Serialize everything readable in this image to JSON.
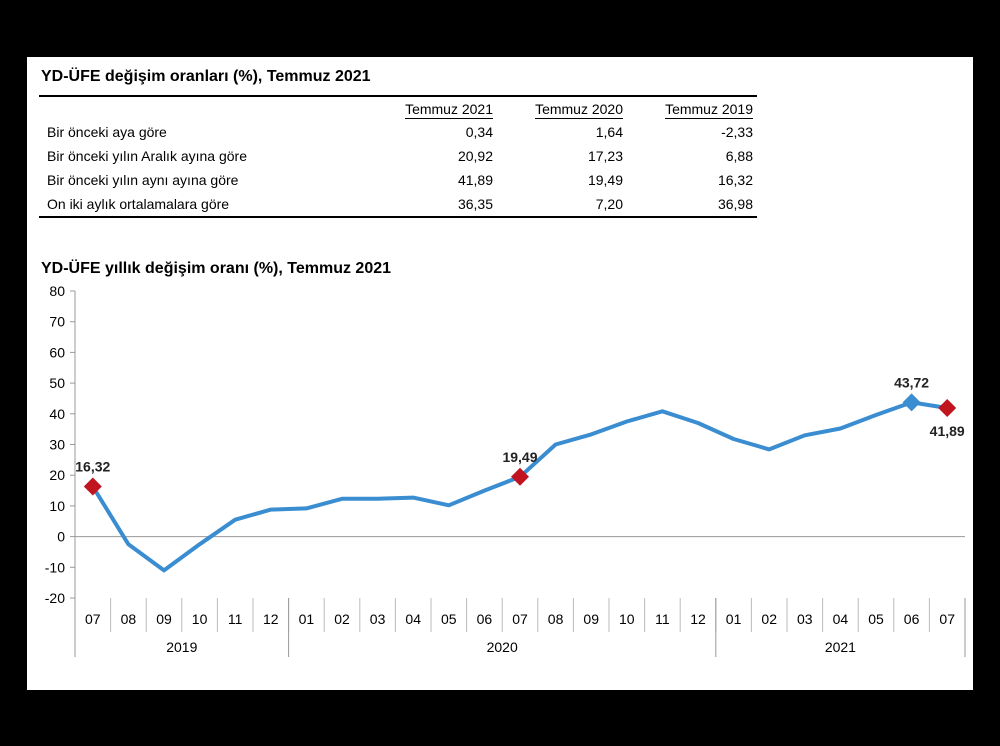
{
  "table": {
    "title": "YD-ÜFE değişim oranları (%), Temmuz 2021",
    "headers": [
      "",
      "Temmuz 2021",
      "Temmuz 2020",
      "Temmuz 2019"
    ],
    "rows": [
      {
        "label": "Bir önceki aya göre",
        "values": [
          "0,34",
          "1,64",
          "-2,33"
        ]
      },
      {
        "label": "Bir önceki yılın Aralık ayına göre",
        "values": [
          "20,92",
          "17,23",
          "6,88"
        ]
      },
      {
        "label": "Bir önceki yılın aynı ayına göre",
        "values": [
          "41,89",
          "19,49",
          "16,32"
        ]
      },
      {
        "label": "On iki aylık ortalamalara göre",
        "values": [
          "36,35",
          "7,20",
          "36,98"
        ]
      }
    ]
  },
  "chart_data": {
    "type": "line",
    "title": "YD-ÜFE yıllık değişim oranı (%), Temmuz 2021",
    "categories": [
      "07",
      "08",
      "09",
      "10",
      "11",
      "12",
      "01",
      "02",
      "03",
      "04",
      "05",
      "06",
      "07",
      "08",
      "09",
      "10",
      "11",
      "12",
      "01",
      "02",
      "03",
      "04",
      "05",
      "06",
      "07"
    ],
    "groups": [
      {
        "label": "2019",
        "start": 0,
        "end": 5
      },
      {
        "label": "2020",
        "start": 6,
        "end": 17
      },
      {
        "label": "2021",
        "start": 18,
        "end": 24
      }
    ],
    "values": [
      16.32,
      -2.5,
      -11.0,
      -2.5,
      5.5,
      8.8,
      9.2,
      12.3,
      12.3,
      12.7,
      10.2,
      15.0,
      19.49,
      30.0,
      33.3,
      37.5,
      40.8,
      37.0,
      31.8,
      28.4,
      33.0,
      35.2,
      39.6,
      43.72,
      41.89
    ],
    "ylim": [
      -20,
      80
    ],
    "yticks": [
      -20,
      -10,
      0,
      10,
      20,
      30,
      40,
      50,
      60,
      70,
      80
    ],
    "xlabel": "",
    "ylabel": "",
    "line_color": "#3a8dd0",
    "highlight_color_red": "#c0141e",
    "highlight_color_blue": "#3a8dd0",
    "highlights": [
      {
        "index": 0,
        "label": "16,32",
        "color": "red",
        "pos": "above"
      },
      {
        "index": 12,
        "label": "19,49",
        "color": "red",
        "pos": "above"
      },
      {
        "index": 23,
        "label": "43,72",
        "color": "blue",
        "pos": "above"
      },
      {
        "index": 24,
        "label": "41,89",
        "color": "red",
        "pos": "below"
      }
    ]
  }
}
